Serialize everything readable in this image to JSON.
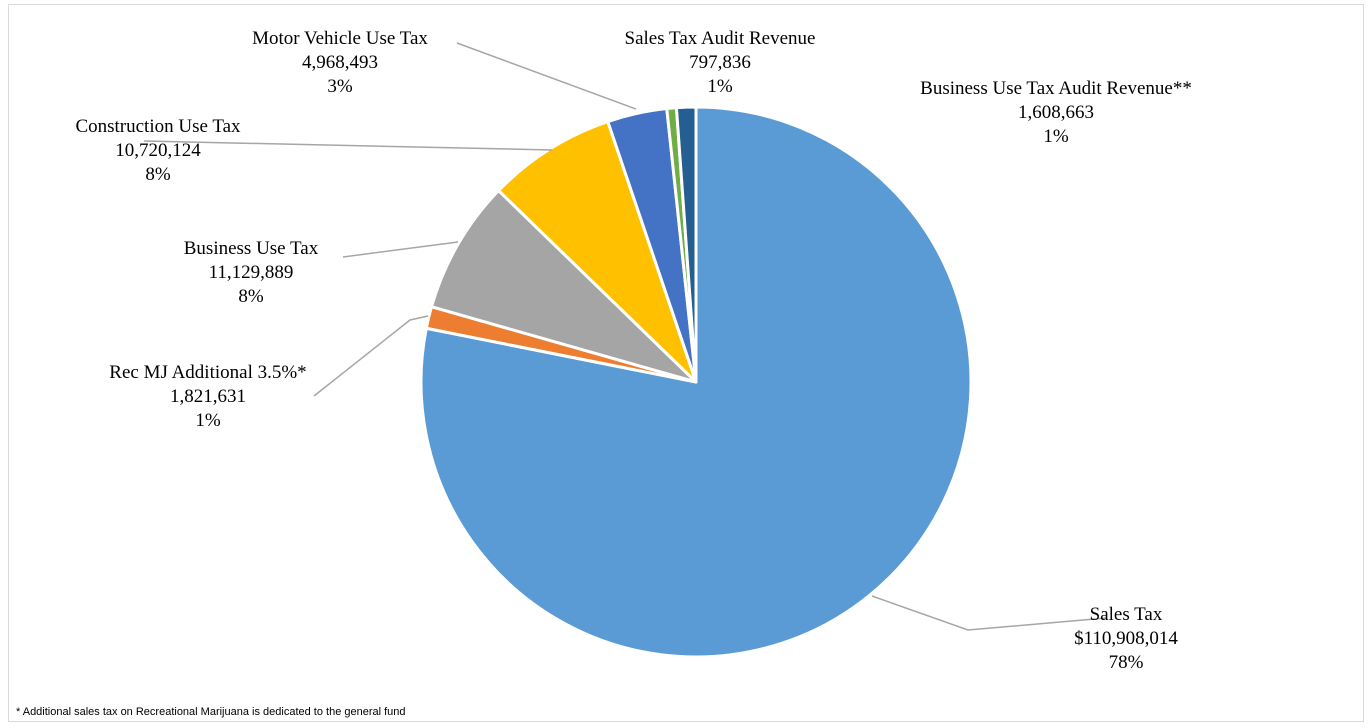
{
  "chart_data": {
    "type": "pie",
    "title": "",
    "slices": [
      {
        "name": "Sales Tax",
        "value": 110908014,
        "value_label": "$110,908,014",
        "percent_label": "78%",
        "color": "#5b9bd5"
      },
      {
        "name": "Rec MJ Additional  3.5%*",
        "value": 1821631,
        "value_label": "1,821,631",
        "percent_label": "1%",
        "color": "#ed7d31"
      },
      {
        "name": "Business Use Tax",
        "value": 11129889,
        "value_label": "11,129,889",
        "percent_label": "8%",
        "color": "#a5a5a5"
      },
      {
        "name": "Construction Use Tax",
        "value": 10720124,
        "value_label": "10,720,124",
        "percent_label": "8%",
        "color": "#ffc000"
      },
      {
        "name": "Motor Vehicle  Use Tax",
        "value": 4968493,
        "value_label": "4,968,493",
        "percent_label": "3%",
        "color": "#4472c4"
      },
      {
        "name": "Sales Tax Audit Revenue",
        "value": 797836,
        "value_label": "797,836",
        "percent_label": "1%",
        "color": "#70ad47"
      },
      {
        "name": "Business Use Tax Audit Revenue**",
        "value": 1608663,
        "value_label": "1,608,663",
        "percent_label": "1%",
        "color": "#255e91"
      }
    ],
    "start_angle_deg": 0,
    "direction": "clockwise",
    "legend": "none",
    "data_labels": "outside-with-leader-lines"
  },
  "footnote": "* Additional sales tax on Recreational Marijuana is dedicated to the general fund"
}
